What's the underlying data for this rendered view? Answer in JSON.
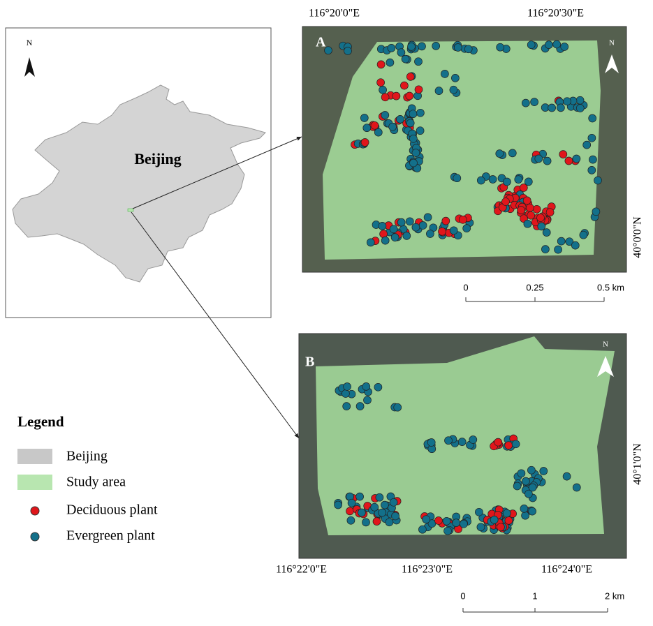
{
  "overview": {
    "north": "N",
    "label": "Beijing"
  },
  "panel_a": {
    "label": "A",
    "north": "N",
    "x_labels": [
      "116°20'0\"E",
      "116°20'30\"E"
    ],
    "y_labels": [
      "40°0'0\"N"
    ],
    "scale": [
      "0",
      "0.25",
      "0.5 km"
    ]
  },
  "panel_b": {
    "label": "B",
    "north": "N",
    "x_labels": [
      "116°22'0\"E",
      "116°23'0\"E",
      "116°24'0\"E"
    ],
    "y_labels": [
      "40°1'0\"N"
    ],
    "scale": [
      "0",
      "1",
      "2 km"
    ]
  },
  "legend": {
    "title": "Legend",
    "items": [
      "Beijing",
      "Study area",
      "Deciduous plant",
      "Evergreen plant"
    ]
  }
}
